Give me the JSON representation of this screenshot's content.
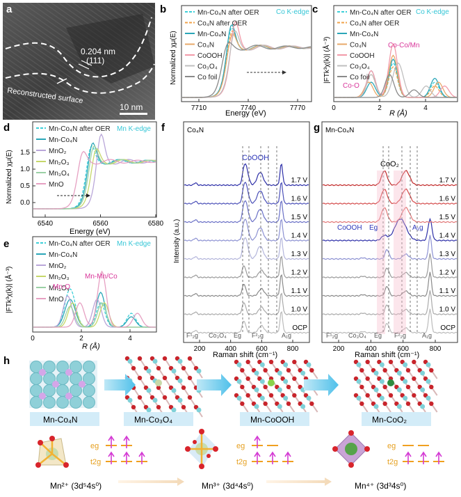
{
  "panel_labels": {
    "a": "a",
    "b": "b",
    "c": "c",
    "d": "d",
    "e": "e",
    "f": "f",
    "g": "g",
    "h": "h"
  },
  "panel_a": {
    "d_spacing": "0.204 nm",
    "plane": "(111)",
    "surface_label": "Reconstructed surface",
    "scalebar": "10 nm"
  },
  "colors": {
    "mnco4n_after_oer": "#3ccfd8",
    "co4n_after_oer": "#f0a24a",
    "mnco4n": "#2aa6b8",
    "co4n": "#e8a96a",
    "cooh": "#f29aa8",
    "co3o4": "#bfbfbf",
    "cofoil": "#8a8a8a",
    "edge_label": "#35c6d6",
    "annotation_magenta": "#d8369a",
    "mno2": "#b9a6d9",
    "mn2o3": "#c6d76a",
    "mn3o4": "#9ad0a5",
    "mno": "#e6a0c2"
  },
  "chart_data": [
    {
      "panel": "b",
      "type": "line",
      "title": "Co K-edge",
      "xlabel": "Energy (eV)",
      "ylabel": "Normalized χμ(E)",
      "xlim": [
        7700,
        7775
      ],
      "xticks": [
        "7710",
        "7740",
        "7770"
      ],
      "legend": [
        "Mn-Co₄N after OER",
        "Co₄N after OER",
        "Mn-Co₄N",
        "Co₄N",
        "CoOOH",
        "Co₃O₄",
        "Co foil"
      ]
    },
    {
      "panel": "c",
      "type": "line",
      "title": "Co K-edge",
      "xlabel": "R (Å)",
      "ylabel": "|FTk³χ(k)| (Å⁻³)",
      "xlim": [
        0,
        5
      ],
      "xticks": [
        "0",
        "2",
        "4"
      ],
      "annotations": [
        "Co-Co/Mn",
        "Co-O"
      ],
      "legend": [
        "Mn-Co₄N after OER",
        "Co₄N after OER",
        "Mn-Co₄N",
        "Co₄N",
        "CoOOH",
        "Co₃O₄",
        "Co foil"
      ]
    },
    {
      "panel": "d",
      "type": "line",
      "title": "Mn K-edge",
      "xlabel": "Energy (eV)",
      "ylabel": "Normalized χμ(E)",
      "xlim": [
        6535,
        6580
      ],
      "xticks": [
        "6540",
        "6560",
        "6580"
      ],
      "yticks": [
        "0.0",
        "0.5",
        "1.0",
        "1.5"
      ],
      "legend": [
        "Mn-Co₄N after OER",
        "Mn-Co₄N",
        "MnO₂",
        "Mn₂O₃",
        "Mn₃O₄",
        "MnO"
      ]
    },
    {
      "panel": "e",
      "type": "line",
      "title": "Mn K-edge",
      "xlabel": "R (Å)",
      "ylabel": "|FTk³χ(k)| (Å⁻³)",
      "xlim": [
        0,
        5
      ],
      "xticks": [
        "0",
        "2",
        "4"
      ],
      "annotations": [
        "Mn-Mn/Co",
        "Mn-O"
      ],
      "legend": [
        "Mn-Co₄N after OER",
        "Mn-Co₄N",
        "MnO₂",
        "Mn₂O₃",
        "Mn₃O₄",
        "MnO"
      ]
    },
    {
      "panel": "f",
      "type": "line",
      "title": "Co₄N",
      "xlabel": "Raman shift (cm⁻¹)",
      "ylabel": "Intensity (a.u.)",
      "xlim": [
        100,
        900
      ],
      "xticks": [
        "200",
        "400",
        "600",
        "800"
      ],
      "peak_label": "CoOOH",
      "series": [
        "1.7 V",
        "1.6 V",
        "1.5 V",
        "1.4 V",
        "1.3 V",
        "1.2 V",
        "1.1 V",
        "1.0 V",
        "OCP"
      ],
      "bottom_labels": [
        "F¹₂g",
        "Co₃O₄",
        "Eg",
        "F²₂g",
        "A₁g"
      ]
    },
    {
      "panel": "g",
      "type": "line",
      "title": "Mn-Co₄N",
      "xlabel": "Raman shift (cm⁻¹)",
      "xlim": [
        100,
        900
      ],
      "xticks": [
        "200",
        "400",
        "600",
        "800"
      ],
      "peak_label": "CoO₂",
      "side_labels": [
        "CoOOH",
        "Eg",
        "A₁g"
      ],
      "series": [
        "1.7 V",
        "1.6 V",
        "1.5 V",
        "1.4 V",
        "1.3 V",
        "1.2 V",
        "1.1 V",
        "1.0 V",
        "OCP"
      ],
      "bottom_labels": [
        "F¹₂g",
        "Co₃O₄",
        "Eg",
        "F²₂g",
        "A₁g"
      ]
    }
  ],
  "panel_h": {
    "structures": [
      "Mn-Co₄N",
      "Mn-Co₃O₄",
      "Mn-CoOOH",
      "Mn-CoO₂"
    ],
    "orbitals": {
      "eg": "eg",
      "t2g": "t2g"
    },
    "states": [
      "Mn²⁺ (3d⁵4s⁰)",
      "Mn³⁺ (3d⁴4s⁰)",
      "Mn⁴⁺ (3d³4s⁰)"
    ]
  }
}
